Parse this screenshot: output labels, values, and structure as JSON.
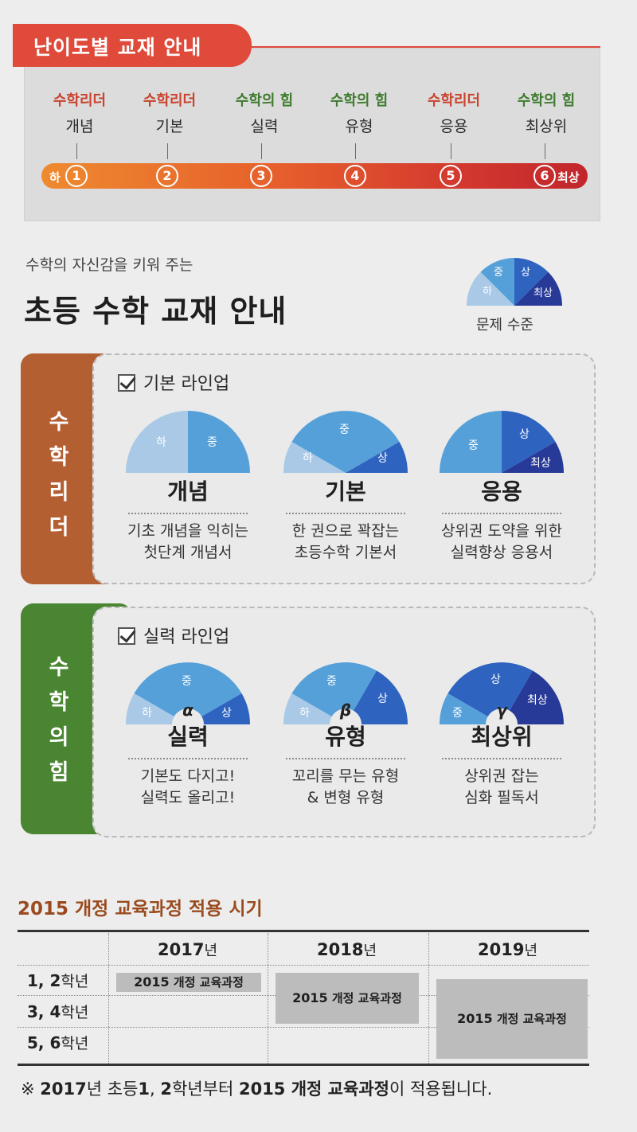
{
  "top": {
    "tag": "난이도별 교재 안내",
    "low": "하",
    "high": "최상",
    "steps": [
      {
        "num": "1",
        "series": "수학리더",
        "name": "개념",
        "color": "red"
      },
      {
        "num": "2",
        "series": "수학리더",
        "name": "기본",
        "color": "red"
      },
      {
        "num": "3",
        "series": "수학의 힘",
        "name": "실력",
        "color": "green"
      },
      {
        "num": "4",
        "series": "수학의 힘",
        "name": "유형",
        "color": "green"
      },
      {
        "num": "5",
        "series": "수학리더",
        "name": "응용",
        "color": "red"
      },
      {
        "num": "6",
        "series": "수학의 힘",
        "name": "최상위",
        "color": "green"
      }
    ]
  },
  "intro": {
    "subtitle": "수학의 자신감을 키워 주는",
    "title": "초등 수학 교재 안내",
    "legend_caption": "문제 수준",
    "levels": [
      "하",
      "중",
      "상",
      "최상"
    ]
  },
  "colors": {
    "ha": "#a9c9e6",
    "jung": "#56a0da",
    "sang": "#2f63c0",
    "choisang": "#283a98",
    "brown": "#b45f32",
    "green": "#4a8532"
  },
  "leader": {
    "tab": [
      "수",
      "학",
      "리",
      "더"
    ],
    "lineup": "기본 라인업",
    "books": [
      {
        "name": "개념",
        "desc1": "기초 개념을 익히는",
        "desc2": "첫단계 개념서"
      },
      {
        "name": "기본",
        "desc1": "한 권으로 꽉잡는",
        "desc2": "초등수학 기본서"
      },
      {
        "name": "응용",
        "desc1": "상위권 도약을 위한",
        "desc2": "실력향상 응용서"
      }
    ]
  },
  "power": {
    "tab": [
      "수",
      "학",
      "의",
      "힘"
    ],
    "lineup": "실력 라인업",
    "books": [
      {
        "greek": "α",
        "name": "실력",
        "desc1": "기본도 다지고!",
        "desc2": "실력도 올리고!"
      },
      {
        "greek": "β",
        "name": "유형",
        "desc1": "꼬리를 무는 유형",
        "desc2": "& 변형 유형"
      },
      {
        "greek": "γ",
        "name": "최상위",
        "desc1": "상위권 잡는",
        "desc2": "심화 필독서"
      }
    ]
  },
  "schedule": {
    "title": "2015 개정 교육과정 적용 시기",
    "years": [
      {
        "num": "2017",
        "unit": "년"
      },
      {
        "num": "2018",
        "unit": "년"
      },
      {
        "num": "2019",
        "unit": "년"
      }
    ],
    "grades": [
      {
        "num": "1, 2",
        "unit": "학년"
      },
      {
        "num": "3, 4",
        "unit": "학년"
      },
      {
        "num": "5, 6",
        "unit": "학년"
      }
    ],
    "curriculum_num": "2015",
    "curriculum_text": "개정 교육과정",
    "footnote": {
      "mark": "※",
      "year": "2017",
      "p1": "년 초등",
      "g1": "1",
      "p2": ", ",
      "g2": "2",
      "p3": "학년부터 ",
      "curr": "2015 개정 교육과정",
      "p4": "이 적용됩니다."
    }
  }
}
